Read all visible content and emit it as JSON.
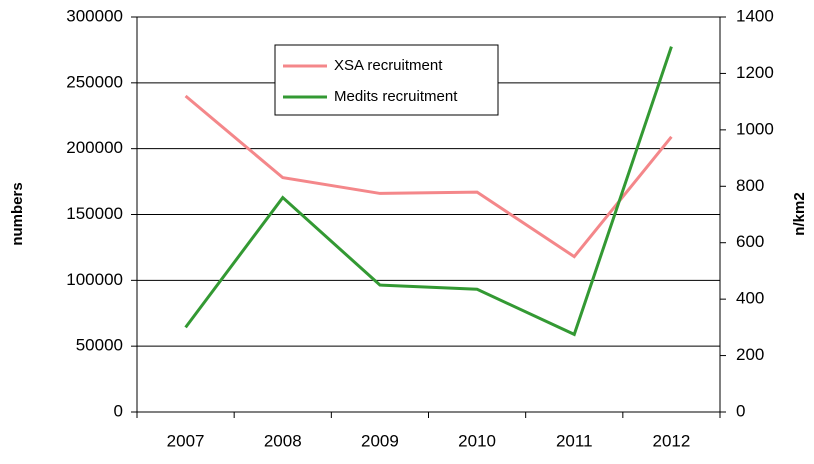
{
  "chart_data": {
    "type": "line",
    "categories": [
      "2007",
      "2008",
      "2009",
      "2010",
      "2011",
      "2012"
    ],
    "series": [
      {
        "name": "XSA recruitment",
        "color": "#f4878a",
        "values": [
          240000,
          178000,
          166000,
          167000,
          118000,
          209000
        ]
      },
      {
        "name": "Medits recruitment",
        "color": "#339933",
        "axis": "y2",
        "values": [
          300,
          760,
          450,
          435,
          275,
          1295
        ]
      }
    ],
    "ylabel": "numbers",
    "y2label": "n/km2",
    "ylim": [
      0,
      300000
    ],
    "yticks": [
      0,
      50000,
      100000,
      150000,
      200000,
      250000,
      300000
    ],
    "y2lim": [
      0,
      1400
    ],
    "y2ticks": [
      0,
      200,
      400,
      600,
      800,
      1000,
      1200,
      1400
    ],
    "grid": true
  }
}
